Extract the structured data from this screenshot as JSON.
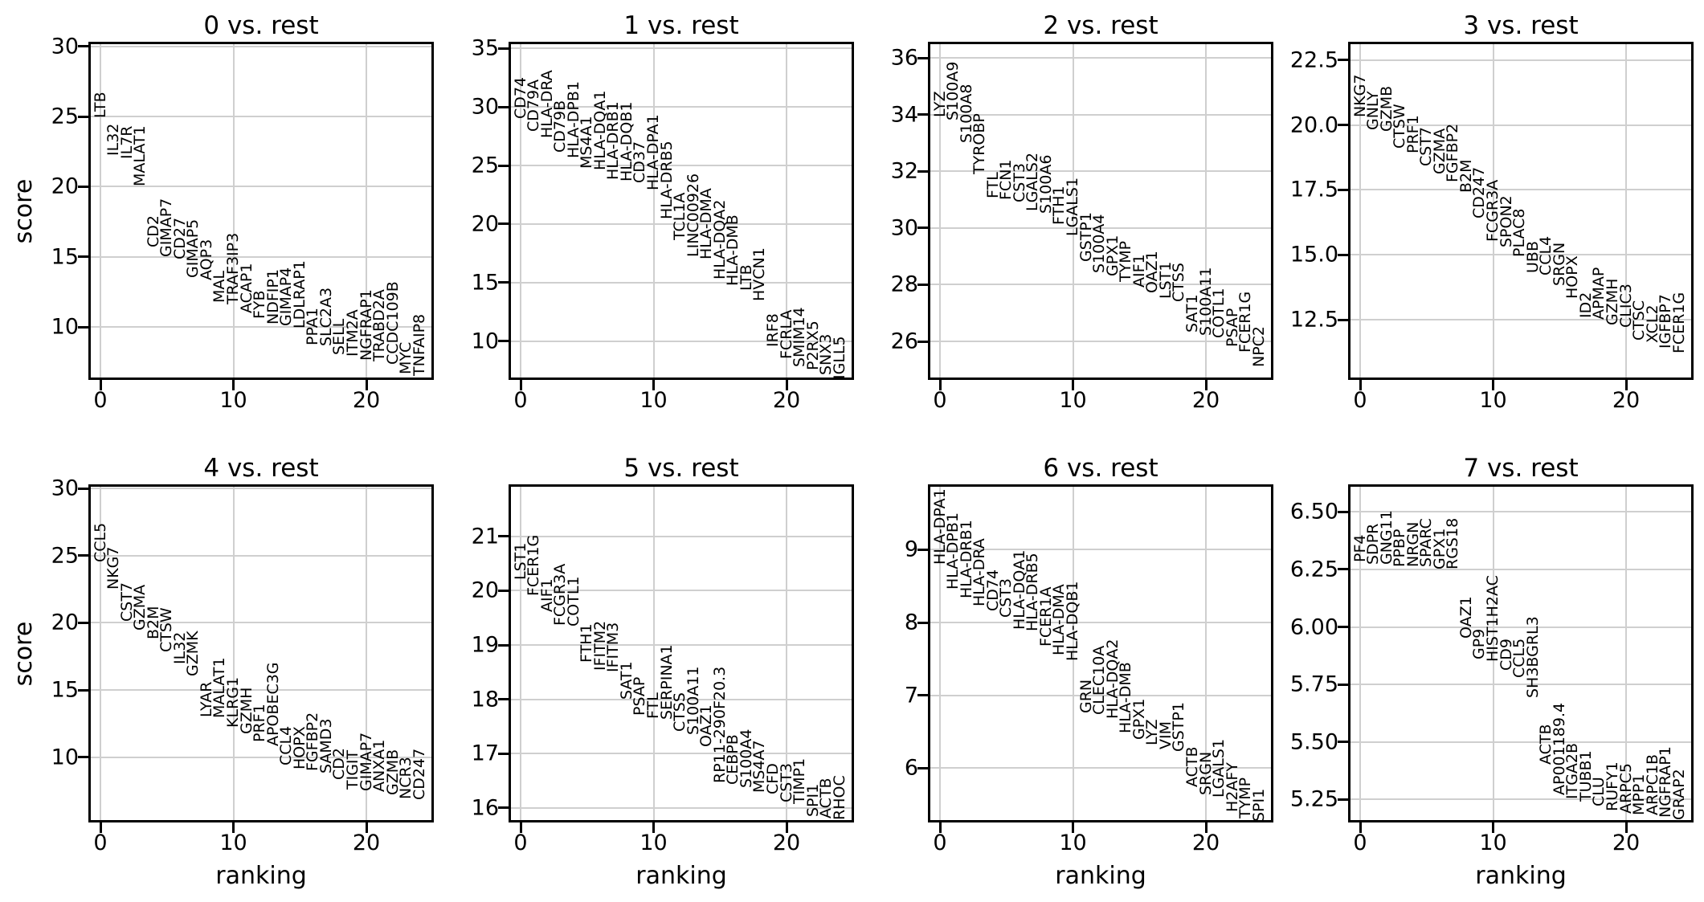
{
  "figure": {
    "background": "#ffffff",
    "text_color": "#000000",
    "grid_color": "#cfcfcf",
    "spine_color": "#000000",
    "score_axis_label": "score",
    "ranking_axis_label": "ranking"
  },
  "chart_data": [
    {
      "type": "scatter",
      "title": "0 vs. rest",
      "ylabel": "score",
      "xlabel": "",
      "row": 0,
      "col": 0,
      "xlim": [
        -0.906,
        25.08
      ],
      "ylim": [
        6.22,
        30.34
      ],
      "xtick_values": [
        0,
        10,
        20
      ],
      "xtick_labels": [
        "0",
        "10",
        "20"
      ],
      "ytick_values": [
        10,
        15,
        20,
        25,
        30
      ],
      "ytick_labels": [
        "10",
        "15",
        "20",
        "25",
        "30"
      ],
      "genes": [
        "LTB",
        "IL32",
        "IL7R",
        "MALAT1",
        "CD2",
        "GIMAP7",
        "CD27",
        "GIMAP5",
        "AQP3",
        "MAL",
        "TRAF3IP3",
        "ACAP1",
        "FYB",
        "NDFIP1",
        "GIMAP4",
        "LDLRAP1",
        "PPA1",
        "SLC2A3",
        "SELL",
        "ITM2A",
        "NGFRAP1",
        "TRABD2A",
        "CCDC109B",
        "MYC",
        "TNFAIP8"
      ],
      "scores": [
        24.9,
        22.2,
        22.0,
        20.0,
        15.7,
        15.0,
        14.8,
        13.5,
        13.3,
        11.7,
        11.6,
        11.0,
        10.6,
        10.2,
        10.05,
        9.9,
        8.7,
        8.6,
        8.0,
        7.9,
        7.6,
        7.55,
        7.3,
        6.6,
        6.5
      ]
    },
    {
      "type": "scatter",
      "title": "1 vs. rest",
      "ylabel": "",
      "xlabel": "",
      "row": 0,
      "col": 1,
      "xlim": [
        -0.906,
        25.08
      ],
      "ylim": [
        6.71,
        35.55
      ],
      "xtick_values": [
        0,
        10,
        20
      ],
      "xtick_labels": [
        "0",
        "10",
        "20"
      ],
      "ytick_values": [
        10,
        15,
        20,
        25,
        30,
        35
      ],
      "ytick_labels": [
        "10",
        "15",
        "20",
        "25",
        "30",
        "35"
      ],
      "genes": [
        "CD74",
        "CD79A",
        "HLA-DRA",
        "CD79B",
        "HLA-DPB1",
        "MS4A1",
        "HLA-DQA1",
        "HLA-DRB1",
        "HLA-DQB1",
        "CD37",
        "HLA-DPA1",
        "HLA-DRB5",
        "TCL1A",
        "LINC00926",
        "HLA-DMA",
        "HLA-DQA2",
        "HLA-DMB",
        "LTB",
        "HVCN1",
        "IRF8",
        "FCRLA",
        "SMIM14",
        "P2RX5",
        "SNX3",
        "IGLL5"
      ],
      "scores": [
        29.0,
        27.9,
        27.3,
        26.1,
        25.6,
        24.7,
        24.6,
        23.8,
        23.6,
        23.5,
        22.9,
        20.4,
        18.6,
        17.2,
        17.0,
        15.3,
        14.7,
        14.3,
        13.4,
        9.5,
        8.5,
        7.8,
        7.5,
        7.1,
        6.8
      ]
    },
    {
      "type": "scatter",
      "title": "2 vs. rest",
      "ylabel": "",
      "xlabel": "",
      "row": 0,
      "col": 2,
      "xlim": [
        -0.906,
        25.08
      ],
      "ylim": [
        24.64,
        36.57
      ],
      "xtick_values": [
        0,
        10,
        20
      ],
      "xtick_labels": [
        "0",
        "10",
        "20"
      ],
      "ytick_values": [
        26,
        28,
        30,
        32,
        34,
        36
      ],
      "ytick_labels": [
        "26",
        "28",
        "30",
        "32",
        "34",
        "36"
      ],
      "genes": [
        "LYZ",
        "S100A9",
        "S100A8",
        "TYROBP",
        "FTL",
        "FCN1",
        "CST3",
        "LGALS2",
        "S100A6",
        "FTH1",
        "LGALS1",
        "GSTP1",
        "S100A4",
        "GPX1",
        "TYMP",
        "AIF1",
        "OAZ1",
        "LST1",
        "CTSS",
        "SAT1",
        "S100A11",
        "COTL1",
        "PSAP",
        "FCER1G",
        "NPC2"
      ],
      "scores": [
        33.9,
        33.8,
        33.0,
        31.9,
        31.05,
        31.0,
        30.9,
        30.6,
        30.5,
        30.1,
        29.7,
        28.8,
        28.4,
        28.3,
        28.1,
        27.9,
        27.7,
        27.5,
        27.4,
        26.3,
        26.2,
        26.1,
        25.8,
        25.6,
        25.1
      ]
    },
    {
      "type": "scatter",
      "title": "3 vs. rest",
      "ylabel": "",
      "xlabel": "",
      "row": 0,
      "col": 3,
      "xlim": [
        -0.906,
        25.08
      ],
      "ylim": [
        10.18,
        23.21
      ],
      "xtick_values": [
        0,
        10,
        20
      ],
      "xtick_labels": [
        "0",
        "10",
        "20"
      ],
      "ytick_values": [
        12.5,
        15.0,
        17.5,
        20.0,
        22.5
      ],
      "ytick_labels": [
        "12.5",
        "15.0",
        "17.5",
        "20.0",
        "22.5"
      ],
      "genes": [
        "NKG7",
        "GNLY",
        "GZMB",
        "CTSW",
        "PRF1",
        "CST7",
        "GZMA",
        "FGFBP2",
        "B2M",
        "CD247",
        "FCGR3A",
        "SPON2",
        "PLAC8",
        "UBB",
        "CCL4",
        "SRGN",
        "HOPX",
        "ID2",
        "APMAP",
        "GZMH",
        "CLIC3",
        "CTSC",
        "XCL2",
        "IGFBP7",
        "FCER1G"
      ],
      "scores": [
        20.3,
        19.8,
        19.75,
        19.1,
        18.9,
        18.4,
        18.1,
        17.8,
        17.4,
        16.4,
        15.5,
        15.3,
        14.9,
        14.3,
        14.2,
        13.8,
        13.3,
        12.55,
        12.5,
        12.3,
        12.2,
        11.7,
        11.6,
        11.4,
        11.2
      ]
    },
    {
      "type": "scatter",
      "title": "4 vs. rest",
      "ylabel": "score",
      "xlabel": "ranking",
      "row": 1,
      "col": 0,
      "xlim": [
        -0.906,
        25.08
      ],
      "ylim": [
        5.15,
        30.3
      ],
      "xtick_values": [
        0,
        10,
        20
      ],
      "xtick_labels": [
        "0",
        "10",
        "20"
      ],
      "ytick_values": [
        10,
        15,
        20,
        25,
        30
      ],
      "ytick_labels": [
        "10",
        "15",
        "20",
        "25",
        "30"
      ],
      "genes": [
        "CCL5",
        "NKG7",
        "CST7",
        "GZMA",
        "B2M",
        "CTSW",
        "IL32",
        "GZMK",
        "LYAR",
        "MALAT1",
        "KLRG1",
        "GZMH",
        "PRF1",
        "APOBEC3G",
        "CCL4",
        "HOPX",
        "FGFBP2",
        "SAMD3",
        "CD2",
        "TIGIT",
        "GIMAP7",
        "ANXA1",
        "GZMB",
        "NCR3",
        "CD247"
      ],
      "scores": [
        24.5,
        22.5,
        20.1,
        19.4,
        18.8,
        17.8,
        16.9,
        16.0,
        13.0,
        12.9,
        12.2,
        11.7,
        11.1,
        10.8,
        9.4,
        9.1,
        9.0,
        8.8,
        8.3,
        7.6,
        7.5,
        7.4,
        7.2,
        6.9,
        6.85
      ]
    },
    {
      "type": "scatter",
      "title": "5 vs. rest",
      "ylabel": "",
      "xlabel": "ranking",
      "row": 1,
      "col": 1,
      "xlim": [
        -0.906,
        25.08
      ],
      "ylim": [
        15.73,
        21.96
      ],
      "xtick_values": [
        0,
        10,
        20
      ],
      "xtick_labels": [
        "0",
        "10",
        "20"
      ],
      "ytick_values": [
        16,
        17,
        18,
        19,
        20,
        21
      ],
      "ytick_labels": [
        "16",
        "17",
        "18",
        "19",
        "20",
        "21"
      ],
      "genes": [
        "LST1",
        "FCER1G",
        "AIF1",
        "FCGR3A",
        "COTL1",
        "FTH1",
        "IFITM2",
        "IFITM3",
        "SAT1",
        "PSAP",
        "FTL",
        "SERPINA1",
        "CTSS",
        "S100A11",
        "OAZ1",
        "RP11-290F20.3",
        "CEBPB",
        "S100A4",
        "MS4A7",
        "CFD",
        "CST3",
        "TIMP1",
        "SPI1",
        "ACTB",
        "RHOC"
      ],
      "scores": [
        20.2,
        19.9,
        19.6,
        19.36,
        19.34,
        18.67,
        18.52,
        18.5,
        18.0,
        17.7,
        17.64,
        17.63,
        17.4,
        17.34,
        17.12,
        16.45,
        16.43,
        16.37,
        16.28,
        16.25,
        16.1,
        16.07,
        15.83,
        15.8,
        15.77
      ]
    },
    {
      "type": "scatter",
      "title": "6 vs. rest",
      "ylabel": "",
      "xlabel": "ranking",
      "row": 1,
      "col": 2,
      "xlim": [
        -0.906,
        25.08
      ],
      "ylim": [
        5.25,
        9.9
      ],
      "xtick_values": [
        0,
        10,
        20
      ],
      "xtick_labels": [
        "0",
        "10",
        "20"
      ],
      "ytick_values": [
        6,
        7,
        8,
        9
      ],
      "ytick_labels": [
        "6",
        "7",
        "8",
        "9"
      ],
      "genes": [
        "HLA-DPA1",
        "HLA-DPB1",
        "HLA-DRB1",
        "HLA-DRA",
        "CD74",
        "CST3",
        "HLA-DQA1",
        "HLA-DRB5",
        "FCER1A",
        "HLA-DMA",
        "HLA-DQB1",
        "GRN",
        "CLEC10A",
        "HLA-DQA2",
        "HLA-DMB",
        "GPX1",
        "LYZ",
        "VIM",
        "GSTP1",
        "ACTB",
        "SRGN",
        "LGALS1",
        "H2AFY",
        "TYMP",
        "SPI1"
      ],
      "scores": [
        8.8,
        8.45,
        8.33,
        8.22,
        8.15,
        8.07,
        7.9,
        7.88,
        7.67,
        7.55,
        7.47,
        6.75,
        6.73,
        6.67,
        6.48,
        6.39,
        6.31,
        6.25,
        6.22,
        5.74,
        5.63,
        5.59,
        5.39,
        5.3,
        5.26
      ]
    },
    {
      "type": "scatter",
      "title": "7 vs. rest",
      "ylabel": "",
      "xlabel": "ranking",
      "row": 1,
      "col": 3,
      "xlim": [
        -0.906,
        25.08
      ],
      "ylim": [
        5.15,
        6.62
      ],
      "xtick_values": [
        0,
        10,
        20
      ],
      "xtick_labels": [
        "0",
        "10",
        "20"
      ],
      "ytick_values": [
        5.25,
        5.5,
        5.75,
        6.0,
        6.25,
        6.5
      ],
      "ytick_labels": [
        "5.25",
        "5.50",
        "5.75",
        "6.00",
        "6.25",
        "6.50"
      ],
      "genes": [
        "PF4",
        "SDPR",
        "GNG11",
        "PPBP",
        "NRGN",
        "SPARC",
        "GPX1",
        "RGS18",
        "OAZ1",
        "GP9",
        "HIST1H2AC",
        "CD9",
        "CCL5",
        "SH3BGRL3",
        "ACTB",
        "AP001189.4",
        "ITGA2B",
        "TUBB1",
        "CLU",
        "RUFY1",
        "ARPC5",
        "MPP1",
        "ARPC1B",
        "NGFRAP1",
        "GRAP2"
      ],
      "scores": [
        6.28,
        6.27,
        6.27,
        6.26,
        6.26,
        6.26,
        6.25,
        6.25,
        5.95,
        5.86,
        5.85,
        5.81,
        5.78,
        5.69,
        5.4,
        5.27,
        5.25,
        5.24,
        5.22,
        5.2,
        5.19,
        5.18,
        5.18,
        5.17,
        5.16
      ]
    }
  ]
}
